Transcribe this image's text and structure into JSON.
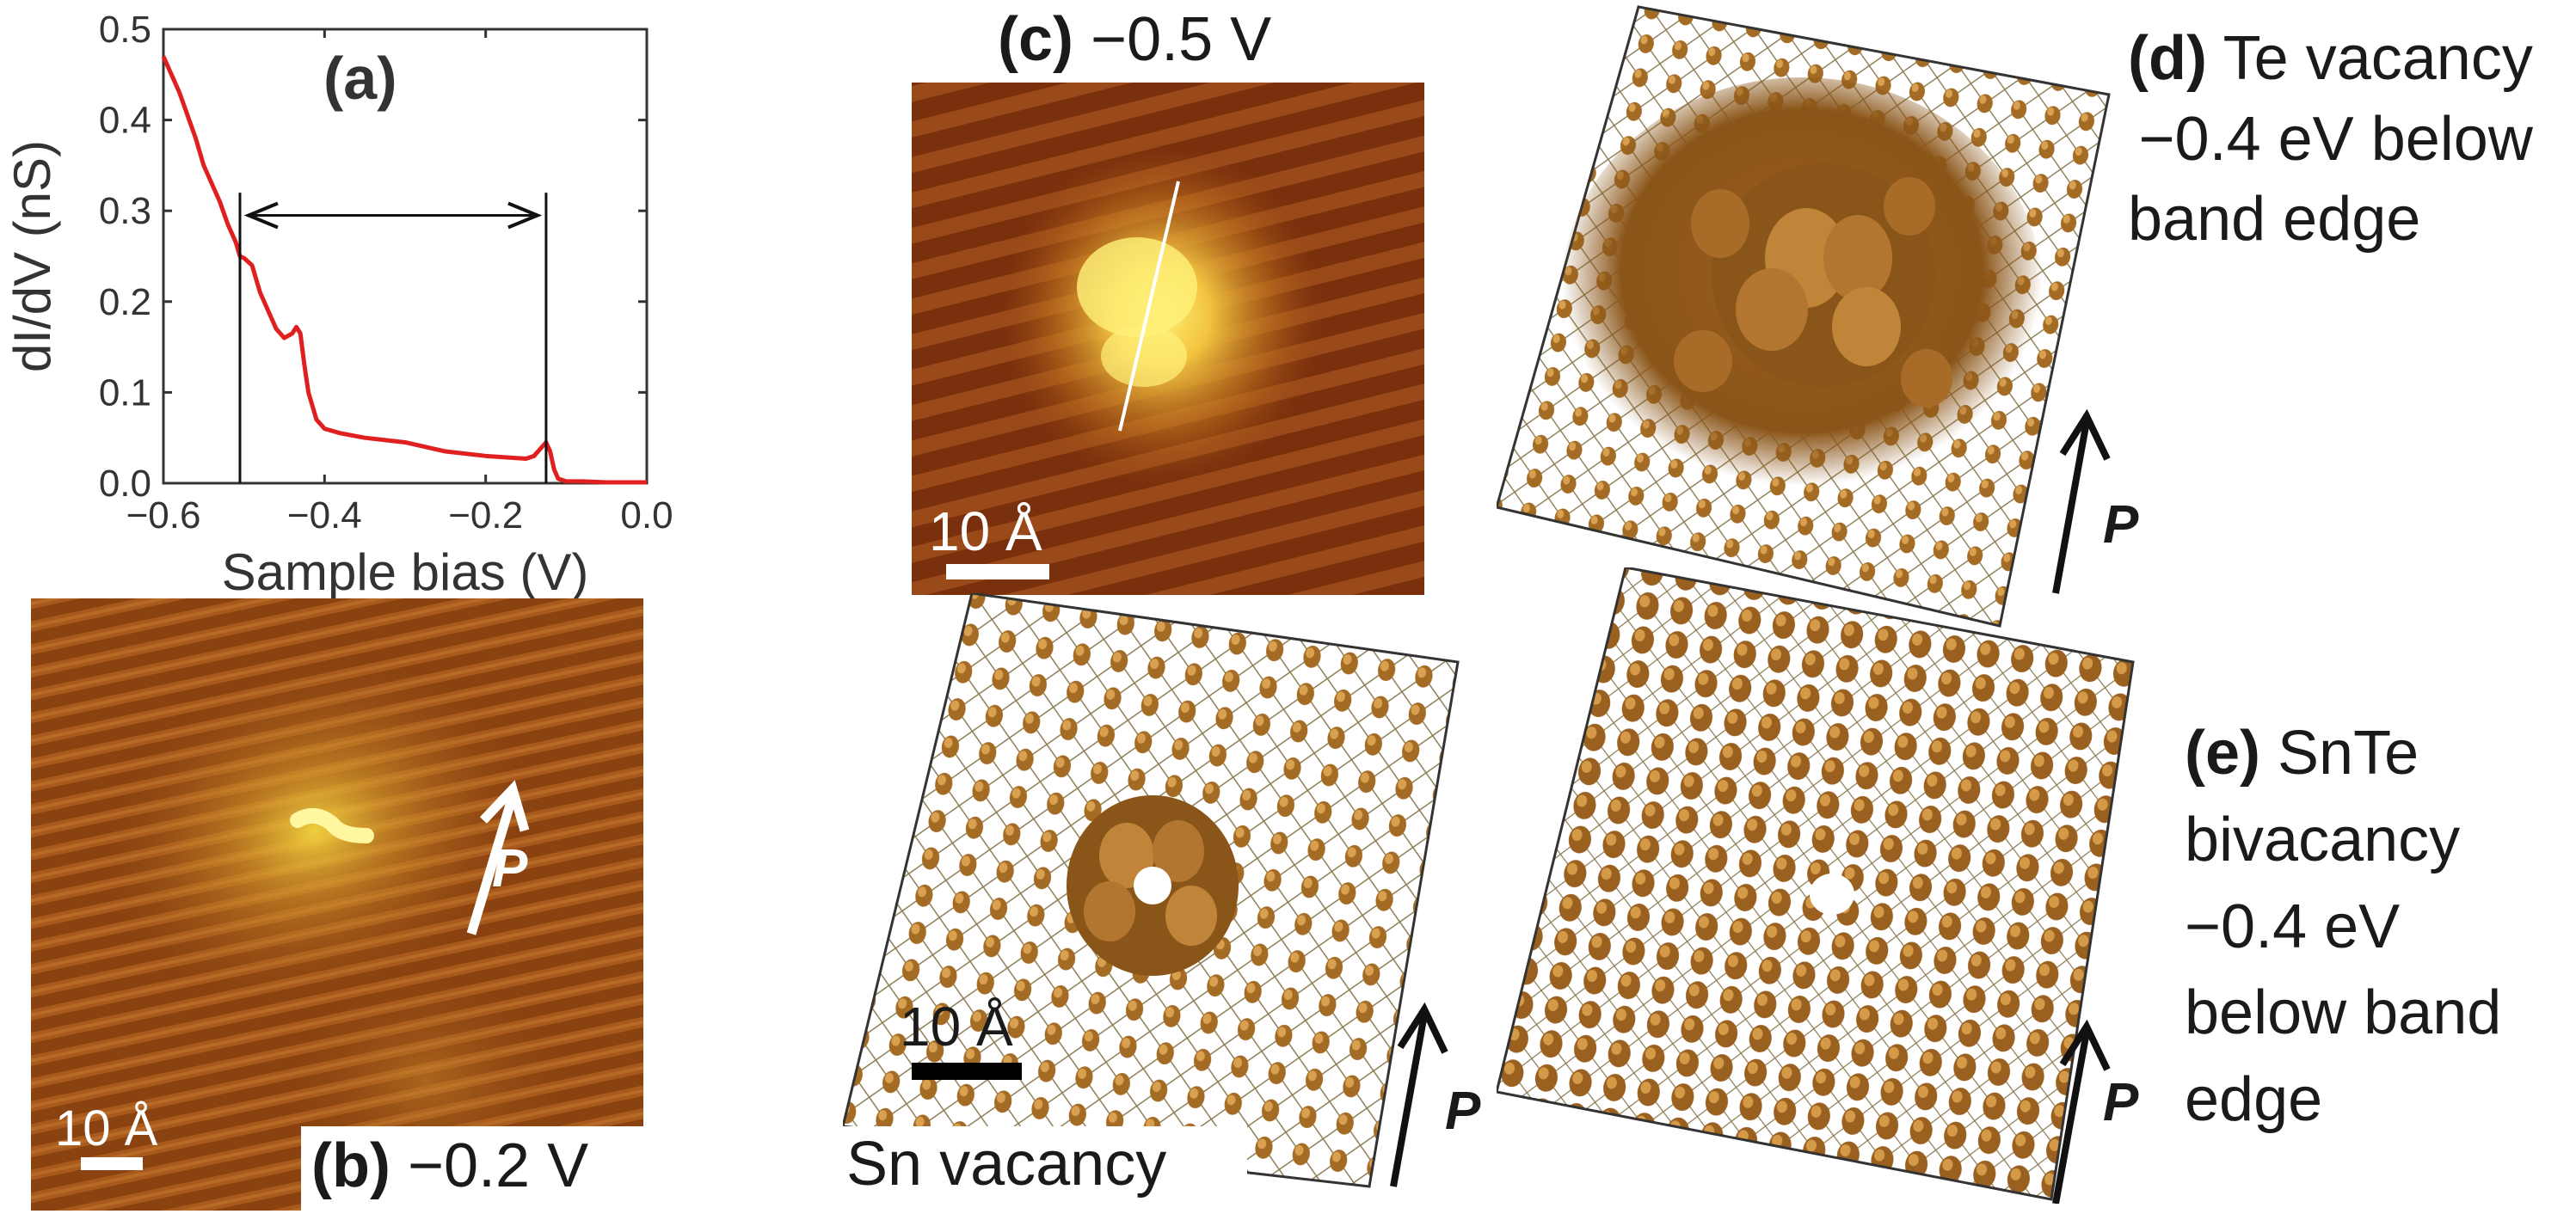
{
  "panels": {
    "a": {
      "letter": "(a)",
      "xlabel": "Sample bias (V)",
      "ylabel": "dI/dV (nS)",
      "xticks": [
        "−0.6",
        "−0.4",
        "−0.2",
        "0.0"
      ],
      "yticks": [
        "0.0",
        "0.1",
        "0.2",
        "0.3",
        "0.4",
        "0.5"
      ]
    },
    "b": {
      "letter": "(b)",
      "bias": "−0.2 V",
      "scale": "10 Å",
      "arrow_label": "P"
    },
    "c": {
      "letter": "(c)",
      "bias": "−0.5 V",
      "scale": "10 Å"
    },
    "sn": {
      "caption": "Sn vacancy",
      "scale": "10 Å",
      "arrow_label": "P"
    },
    "d": {
      "letter": "(d)",
      "lines": [
        "Te vacancy",
        "−0.4 eV below",
        "band edge"
      ],
      "arrow_label": "P"
    },
    "e": {
      "letter": "(e)",
      "lines": [
        "SnTe",
        "bivacancy",
        "−0.4 eV",
        "below band",
        "edge"
      ],
      "arrow_label": "P"
    }
  },
  "chart_data": {
    "type": "line",
    "xlabel": "Sample bias (V)",
    "ylabel": "dI/dV (nS)",
    "xlim": [
      -0.6,
      0.0
    ],
    "ylim": [
      0.0,
      0.5
    ],
    "grid": false,
    "series": [
      {
        "color": "#e02020",
        "x": [
          -0.6,
          -0.58,
          -0.56,
          -0.55,
          -0.54,
          -0.53,
          -0.52,
          -0.51,
          -0.505,
          -0.5,
          -0.49,
          -0.48,
          -0.47,
          -0.46,
          -0.45,
          -0.44,
          -0.435,
          -0.43,
          -0.425,
          -0.42,
          -0.41,
          -0.4,
          -0.38,
          -0.35,
          -0.3,
          -0.25,
          -0.2,
          -0.15,
          -0.14,
          -0.13,
          -0.125,
          -0.12,
          -0.115,
          -0.11,
          -0.1,
          -0.08,
          -0.05,
          0.0
        ],
        "y": [
          0.47,
          0.43,
          0.38,
          0.35,
          0.33,
          0.31,
          0.285,
          0.265,
          0.25,
          0.248,
          0.24,
          0.21,
          0.19,
          0.17,
          0.16,
          0.165,
          0.172,
          0.165,
          0.13,
          0.1,
          0.07,
          0.06,
          0.055,
          0.05,
          0.045,
          0.035,
          0.03,
          0.027,
          0.03,
          0.04,
          0.045,
          0.035,
          0.015,
          0.005,
          0.002,
          0.002,
          0.001,
          0.001
        ]
      }
    ],
    "annotations": [
      {
        "type": "vline",
        "x": -0.505
      },
      {
        "type": "vline",
        "x": -0.125
      },
      {
        "type": "double-arrow",
        "x_start": -0.505,
        "x_end": -0.125,
        "y": 0.295
      }
    ]
  }
}
